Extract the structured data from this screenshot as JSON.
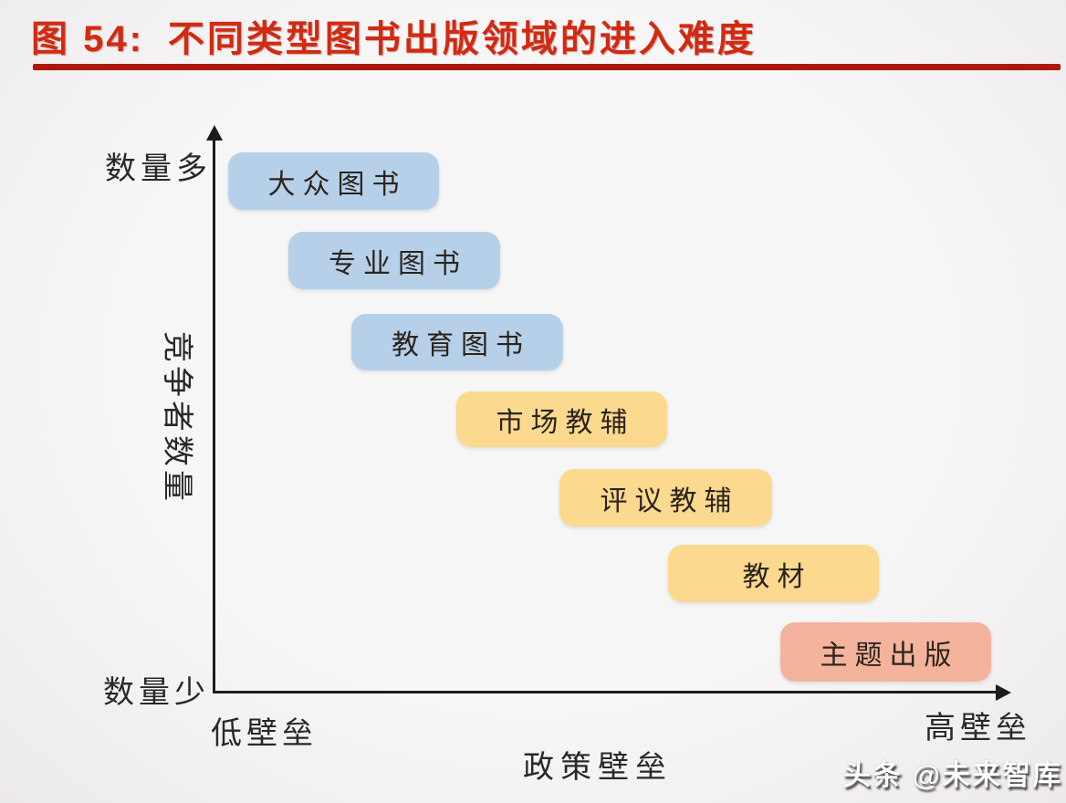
{
  "figure": {
    "label": "图 54:",
    "title": "不同类型图书出版领域的进入难度"
  },
  "colors": {
    "title_red": "#d02b12",
    "underline_red": "#ac190b",
    "axis_black": "#1e1c1a",
    "box_text": "#2b241d",
    "blue_box": "#b7d0e9",
    "yellow_box": "#fbd98e",
    "orange_box": "#f4b39c",
    "background": "#f6f4f5"
  },
  "chart_data": {
    "type": "scatter",
    "title": "不同类型图书出版领域的进入难度",
    "xlabel": "政策壁垒",
    "ylabel": "竞争者数量",
    "x_min_label": "低壁垒",
    "x_max_label": "高壁垒",
    "y_min_label": "数量少",
    "y_max_label": "数量多",
    "grid": false,
    "legend": "none",
    "items": [
      {
        "label": "大众图书",
        "policy_barrier_rank": 1,
        "competitor_count_rank": 7,
        "color": "#b7d0e9"
      },
      {
        "label": "专业图书",
        "policy_barrier_rank": 2,
        "competitor_count_rank": 6,
        "color": "#b7d0e9"
      },
      {
        "label": "教育图书",
        "policy_barrier_rank": 3,
        "competitor_count_rank": 5,
        "color": "#b7d0e9"
      },
      {
        "label": "市场教辅",
        "policy_barrier_rank": 4,
        "competitor_count_rank": 4,
        "color": "#fbd98e"
      },
      {
        "label": "评议教辅",
        "policy_barrier_rank": 5,
        "competitor_count_rank": 3,
        "color": "#fbd98e"
      },
      {
        "label": "教材",
        "policy_barrier_rank": 6,
        "competitor_count_rank": 2,
        "color": "#fbd98e"
      },
      {
        "label": "主题出版",
        "policy_barrier_rank": 7,
        "competitor_count_rank": 1,
        "color": "#f4b39c"
      }
    ]
  },
  "watermark": "头条 @未来智库"
}
